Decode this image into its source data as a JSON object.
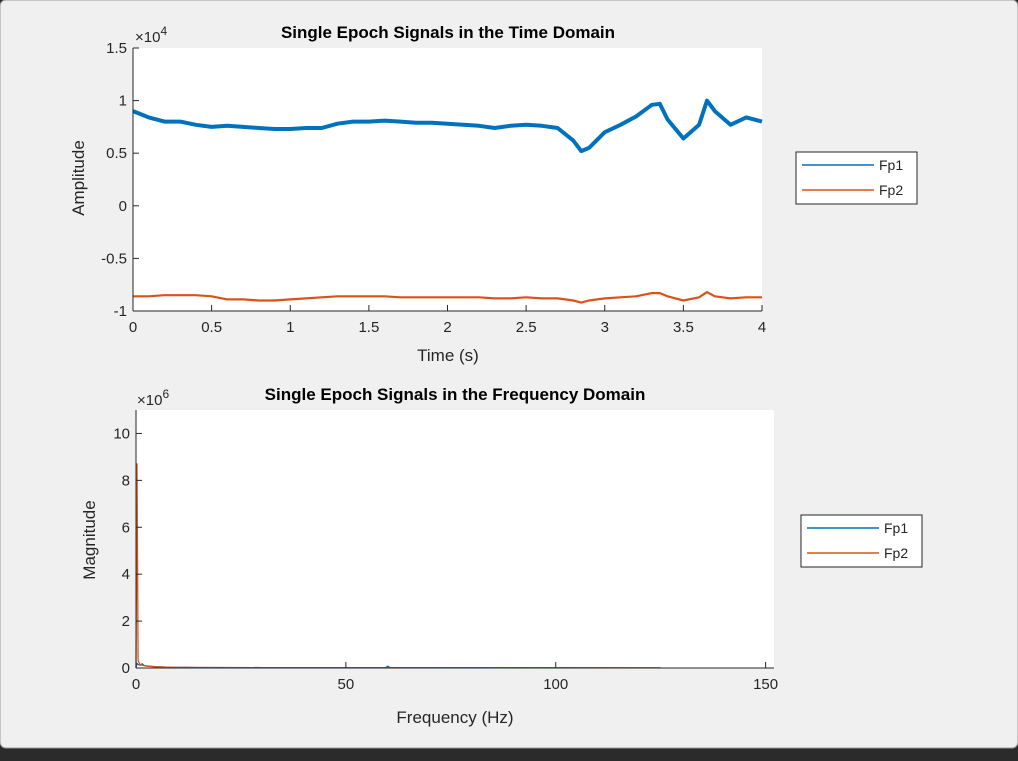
{
  "chart_data": [
    {
      "type": "line",
      "title": "Single Epoch Signals in the Time Domain",
      "xlabel": "Time (s)",
      "ylabel": "Amplitude",
      "y_exponent_label": "×10",
      "y_exponent_power": "4",
      "xlim": [
        0,
        4
      ],
      "ylim": [
        -10000,
        15000
      ],
      "x_ticks": [
        0,
        0.5,
        1,
        1.5,
        2,
        2.5,
        3,
        3.5,
        4
      ],
      "x_tick_labels": [
        "0",
        "0.5",
        "1",
        "1.5",
        "2",
        "2.5",
        "3",
        "3.5",
        "4"
      ],
      "y_ticks": [
        -10000,
        -5000,
        0,
        5000,
        10000,
        15000
      ],
      "y_tick_labels": [
        "-1",
        "-0.5",
        "0",
        "0.5",
        "1",
        "1.5"
      ],
      "legend_position": "outside-right",
      "series": [
        {
          "name": "Fp1",
          "color": "#0072BD",
          "x": [
            0,
            0.1,
            0.2,
            0.3,
            0.4,
            0.5,
            0.6,
            0.7,
            0.8,
            0.9,
            1.0,
            1.1,
            1.2,
            1.3,
            1.4,
            1.5,
            1.6,
            1.7,
            1.8,
            1.9,
            2.0,
            2.1,
            2.2,
            2.3,
            2.4,
            2.5,
            2.6,
            2.7,
            2.8,
            2.85,
            2.9,
            3.0,
            3.1,
            3.2,
            3.3,
            3.35,
            3.4,
            3.5,
            3.6,
            3.65,
            3.7,
            3.8,
            3.9,
            4.0
          ],
          "y": [
            9000,
            8400,
            8000,
            8000,
            7700,
            7500,
            7600,
            7500,
            7400,
            7300,
            7300,
            7400,
            7400,
            7800,
            8000,
            8000,
            8100,
            8000,
            7900,
            7900,
            7800,
            7700,
            7600,
            7400,
            7600,
            7700,
            7600,
            7400,
            6200,
            5200,
            5500,
            7000,
            7700,
            8500,
            9600,
            9700,
            8200,
            6400,
            7700,
            10000,
            9000,
            7700,
            8400,
            8000
          ]
        },
        {
          "name": "Fp2",
          "color": "#D95319",
          "x": [
            0,
            0.1,
            0.2,
            0.3,
            0.4,
            0.5,
            0.6,
            0.7,
            0.8,
            0.9,
            1.0,
            1.1,
            1.2,
            1.3,
            1.4,
            1.5,
            1.6,
            1.7,
            1.8,
            1.9,
            2.0,
            2.1,
            2.2,
            2.3,
            2.4,
            2.5,
            2.6,
            2.7,
            2.8,
            2.85,
            2.9,
            3.0,
            3.1,
            3.2,
            3.3,
            3.35,
            3.4,
            3.5,
            3.6,
            3.65,
            3.7,
            3.8,
            3.9,
            4.0
          ],
          "y": [
            -8600,
            -8600,
            -8500,
            -8500,
            -8500,
            -8600,
            -8900,
            -8900,
            -9000,
            -9000,
            -8900,
            -8800,
            -8700,
            -8600,
            -8600,
            -8600,
            -8600,
            -8700,
            -8700,
            -8700,
            -8700,
            -8700,
            -8700,
            -8800,
            -8800,
            -8700,
            -8800,
            -8800,
            -9000,
            -9200,
            -9000,
            -8800,
            -8700,
            -8600,
            -8300,
            -8300,
            -8600,
            -9000,
            -8700,
            -8200,
            -8600,
            -8800,
            -8700,
            -8700
          ]
        }
      ]
    },
    {
      "type": "line",
      "title": "Single Epoch Signals in the Frequency Domain",
      "xlabel": "Frequency (Hz)",
      "ylabel": "Magnitude",
      "y_exponent_label": "×10",
      "y_exponent_power": "6",
      "xlim": [
        0,
        152
      ],
      "ylim": [
        0,
        11000000
      ],
      "x_ticks": [
        0,
        50,
        100,
        150
      ],
      "x_tick_labels": [
        "0",
        "50",
        "100",
        "150"
      ],
      "y_ticks": [
        0,
        2000000,
        4000000,
        6000000,
        8000000,
        10000000
      ],
      "y_tick_labels": [
        "0",
        "2",
        "4",
        "6",
        "8",
        "10"
      ],
      "legend_position": "outside-right",
      "series": [
        {
          "name": "Fp1",
          "color": "#0072BD",
          "x": [
            0,
            0.25,
            0.5,
            1,
            1.5,
            2,
            3,
            5,
            8,
            15,
            30,
            59.5,
            60,
            60.5,
            90,
            125
          ],
          "y": [
            0,
            200000,
            150000,
            120000,
            180000,
            100000,
            80000,
            50000,
            30000,
            20000,
            15000,
            15000,
            80000,
            15000,
            10000,
            5000
          ]
        },
        {
          "name": "Fp2",
          "color": "#D95319",
          "x": [
            0,
            0.25,
            0.5,
            1,
            1.5,
            2,
            3,
            5,
            8,
            15,
            30,
            60,
            90,
            125
          ],
          "y": [
            0,
            8700000,
            300000,
            150000,
            120000,
            100000,
            70000,
            50000,
            30000,
            20000,
            15000,
            15000,
            10000,
            5000
          ]
        }
      ]
    }
  ]
}
